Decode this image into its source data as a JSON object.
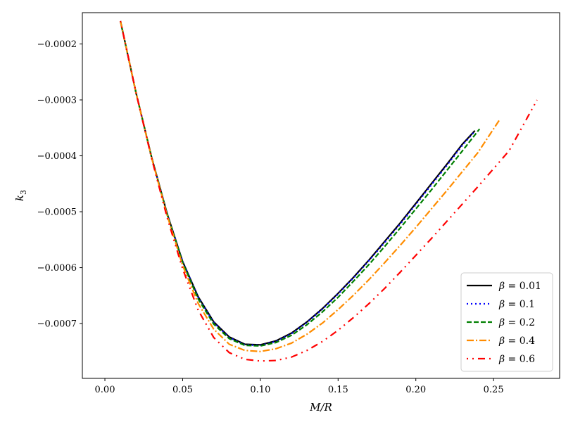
{
  "chart_data": {
    "type": "line",
    "xlabel": "M/R",
    "ylabel": "k_3",
    "xlim": [
      -0.0145,
      0.2925
    ],
    "ylim": [
      -0.000798,
      -0.000144
    ],
    "xticks": [
      0.0,
      0.05,
      0.1,
      0.15,
      0.2,
      0.25
    ],
    "xtick_labels": [
      "0.00",
      "0.05",
      "0.10",
      "0.15",
      "0.20",
      "0.25"
    ],
    "yticks": [
      -0.0002,
      -0.0003,
      -0.0004,
      -0.0005,
      -0.0006,
      -0.0007
    ],
    "ytick_labels": [
      "−0.0002",
      "−0.0003",
      "−0.0004",
      "−0.0005",
      "−0.0006",
      "−0.0007"
    ],
    "grid": false,
    "legend_position": "lower-right",
    "series": [
      {
        "name": "β = 0.01",
        "label_prefix": "β",
        "label_value": "= 0.01",
        "color": "#000000",
        "dash": "",
        "x": [
          0.01,
          0.02,
          0.03,
          0.04,
          0.05,
          0.06,
          0.07,
          0.08,
          0.09,
          0.1,
          0.11,
          0.12,
          0.13,
          0.14,
          0.15,
          0.16,
          0.17,
          0.18,
          0.19,
          0.2,
          0.21,
          0.22,
          0.23,
          0.238
        ],
        "y": [
          -0.000159,
          -0.000287,
          -0.000402,
          -0.000503,
          -0.000589,
          -0.000652,
          -0.000697,
          -0.000724,
          -0.000737,
          -0.000738,
          -0.000731,
          -0.000717,
          -0.000697,
          -0.000673,
          -0.000646,
          -0.000617,
          -0.000586,
          -0.000553,
          -0.00052,
          -0.000485,
          -0.00045,
          -0.000415,
          -0.000379,
          -0.000355
        ]
      },
      {
        "name": "β = 0.1",
        "label_prefix": "β",
        "label_value": "= 0.1",
        "color": "#0000ff",
        "dash": "2 4",
        "x": [
          0.01,
          0.02,
          0.03,
          0.04,
          0.05,
          0.06,
          0.07,
          0.08,
          0.09,
          0.1,
          0.11,
          0.12,
          0.13,
          0.14,
          0.15,
          0.16,
          0.17,
          0.18,
          0.19,
          0.2,
          0.21,
          0.22,
          0.23,
          0.238
        ],
        "y": [
          -0.000159,
          -0.000287,
          -0.000402,
          -0.000503,
          -0.000589,
          -0.000653,
          -0.000698,
          -0.000725,
          -0.000738,
          -0.000739,
          -0.000732,
          -0.000718,
          -0.000698,
          -0.000674,
          -0.000647,
          -0.000618,
          -0.000587,
          -0.000555,
          -0.000522,
          -0.000487,
          -0.000452,
          -0.000417,
          -0.000381,
          -0.000356
        ]
      },
      {
        "name": "β = 0.2",
        "label_prefix": "β",
        "label_value": "= 0.2",
        "color": "#008000",
        "dash": "7 3",
        "x": [
          0.01,
          0.02,
          0.03,
          0.04,
          0.05,
          0.06,
          0.07,
          0.08,
          0.09,
          0.1,
          0.11,
          0.12,
          0.13,
          0.14,
          0.15,
          0.16,
          0.17,
          0.18,
          0.19,
          0.2,
          0.21,
          0.22,
          0.23,
          0.241
        ],
        "y": [
          -0.000159,
          -0.000287,
          -0.000402,
          -0.000504,
          -0.000591,
          -0.000656,
          -0.000701,
          -0.000727,
          -0.000739,
          -0.00074,
          -0.000734,
          -0.000721,
          -0.000702,
          -0.000679,
          -0.000653,
          -0.000624,
          -0.000594,
          -0.000562,
          -0.000529,
          -0.000495,
          -0.000461,
          -0.000426,
          -0.000391,
          -0.000352
        ]
      },
      {
        "name": "β = 0.4",
        "label_prefix": "β",
        "label_value": "= 0.4",
        "color": "#ff8c00",
        "dash": "10 3 2 3",
        "x": [
          0.01,
          0.02,
          0.03,
          0.04,
          0.05,
          0.06,
          0.07,
          0.08,
          0.09,
          0.1,
          0.11,
          0.12,
          0.13,
          0.14,
          0.15,
          0.16,
          0.17,
          0.18,
          0.19,
          0.2,
          0.21,
          0.22,
          0.23,
          0.24,
          0.254
        ],
        "y": [
          -0.000159,
          -0.000287,
          -0.000403,
          -0.000506,
          -0.000596,
          -0.000664,
          -0.00071,
          -0.000737,
          -0.000748,
          -0.00075,
          -0.000745,
          -0.000735,
          -0.000719,
          -0.000699,
          -0.000675,
          -0.000649,
          -0.000621,
          -0.000591,
          -0.00056,
          -0.000528,
          -0.000495,
          -0.000462,
          -0.000428,
          -0.000394,
          -0.000335
        ]
      },
      {
        "name": "β = 0.6",
        "label_prefix": "β",
        "label_value": "= 0.6",
        "color": "#ff0000",
        "dash": "2 6 2 6 10 6",
        "x": [
          0.01,
          0.02,
          0.03,
          0.04,
          0.05,
          0.06,
          0.07,
          0.08,
          0.09,
          0.1,
          0.11,
          0.12,
          0.13,
          0.14,
          0.15,
          0.16,
          0.17,
          0.18,
          0.19,
          0.2,
          0.21,
          0.22,
          0.23,
          0.24,
          0.25,
          0.26,
          0.278
        ],
        "y": [
          -0.000159,
          -0.000287,
          -0.000404,
          -0.00051,
          -0.000602,
          -0.000676,
          -0.000725,
          -0.000752,
          -0.000764,
          -0.000767,
          -0.000766,
          -0.00076,
          -0.000748,
          -0.000732,
          -0.000712,
          -0.000689,
          -0.000664,
          -0.000637,
          -0.000608,
          -0.000578,
          -0.000548,
          -0.000517,
          -0.000486,
          -0.000455,
          -0.000423,
          -0.000391,
          -0.0003
        ]
      }
    ]
  }
}
